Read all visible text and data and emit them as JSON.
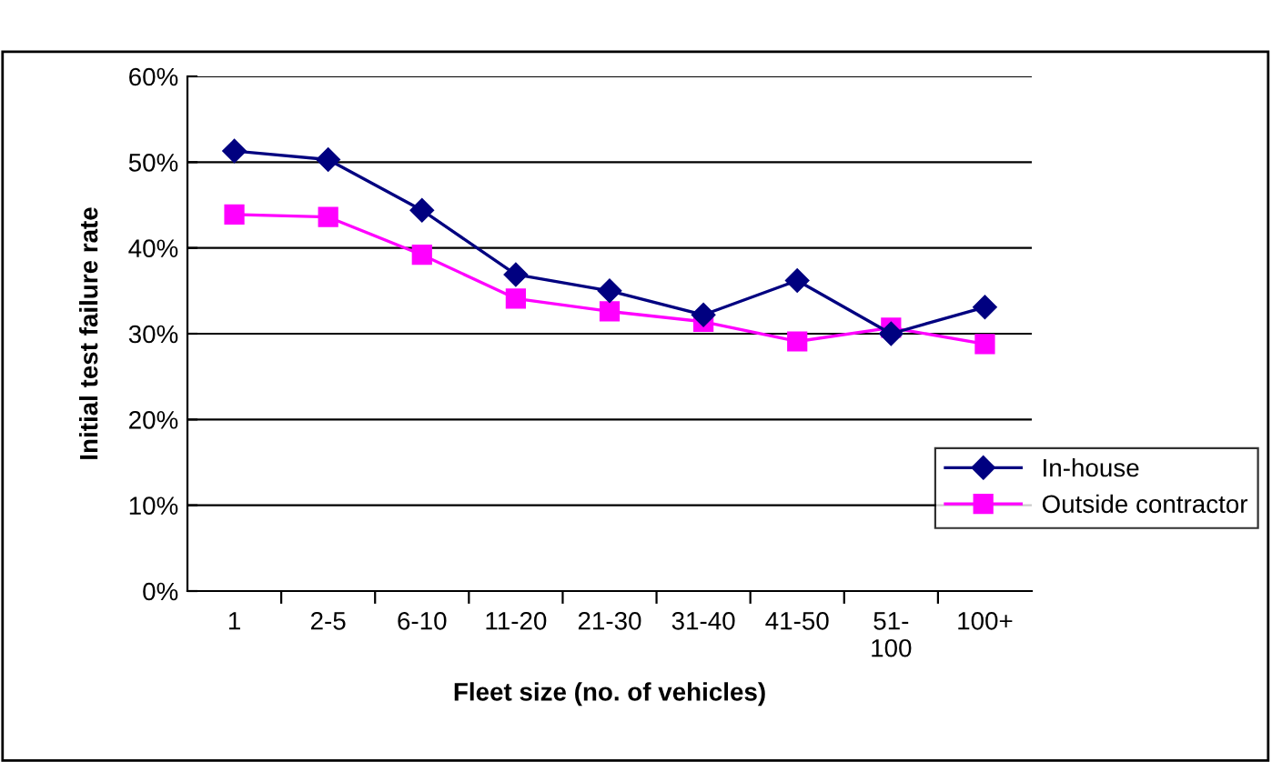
{
  "chart_data": {
    "type": "line",
    "xlabel": "Fleet size (no. of vehicles)",
    "ylabel": "Initial test failure rate",
    "categories": [
      "1",
      "2-5",
      "6-10",
      "11-20",
      "21-30",
      "31-40",
      "41-50",
      "51-\n100",
      "100+"
    ],
    "series": [
      {
        "name": "In-house",
        "color": "#000080",
        "marker": "diamond",
        "values": [
          0.513,
          0.503,
          0.444,
          0.369,
          0.35,
          0.322,
          0.362,
          0.3,
          0.331
        ]
      },
      {
        "name": "Outside contractor",
        "color": "#ff00ff",
        "marker": "square",
        "values": [
          0.439,
          0.436,
          0.392,
          0.341,
          0.326,
          0.314,
          0.291,
          0.307,
          0.288
        ]
      }
    ],
    "ylim": [
      0,
      0.6
    ],
    "yticks": [
      {
        "value": 0,
        "label": "0%"
      },
      {
        "value": 0.1,
        "label": "10%"
      },
      {
        "value": 0.2,
        "label": "20%"
      },
      {
        "value": 0.3,
        "label": "30%"
      },
      {
        "value": 0.4,
        "label": "40%"
      },
      {
        "value": 0.5,
        "label": "50%"
      },
      {
        "value": 0.6,
        "label": "60%"
      }
    ],
    "grid": "y",
    "legend": "right",
    "line_style": "solid"
  }
}
